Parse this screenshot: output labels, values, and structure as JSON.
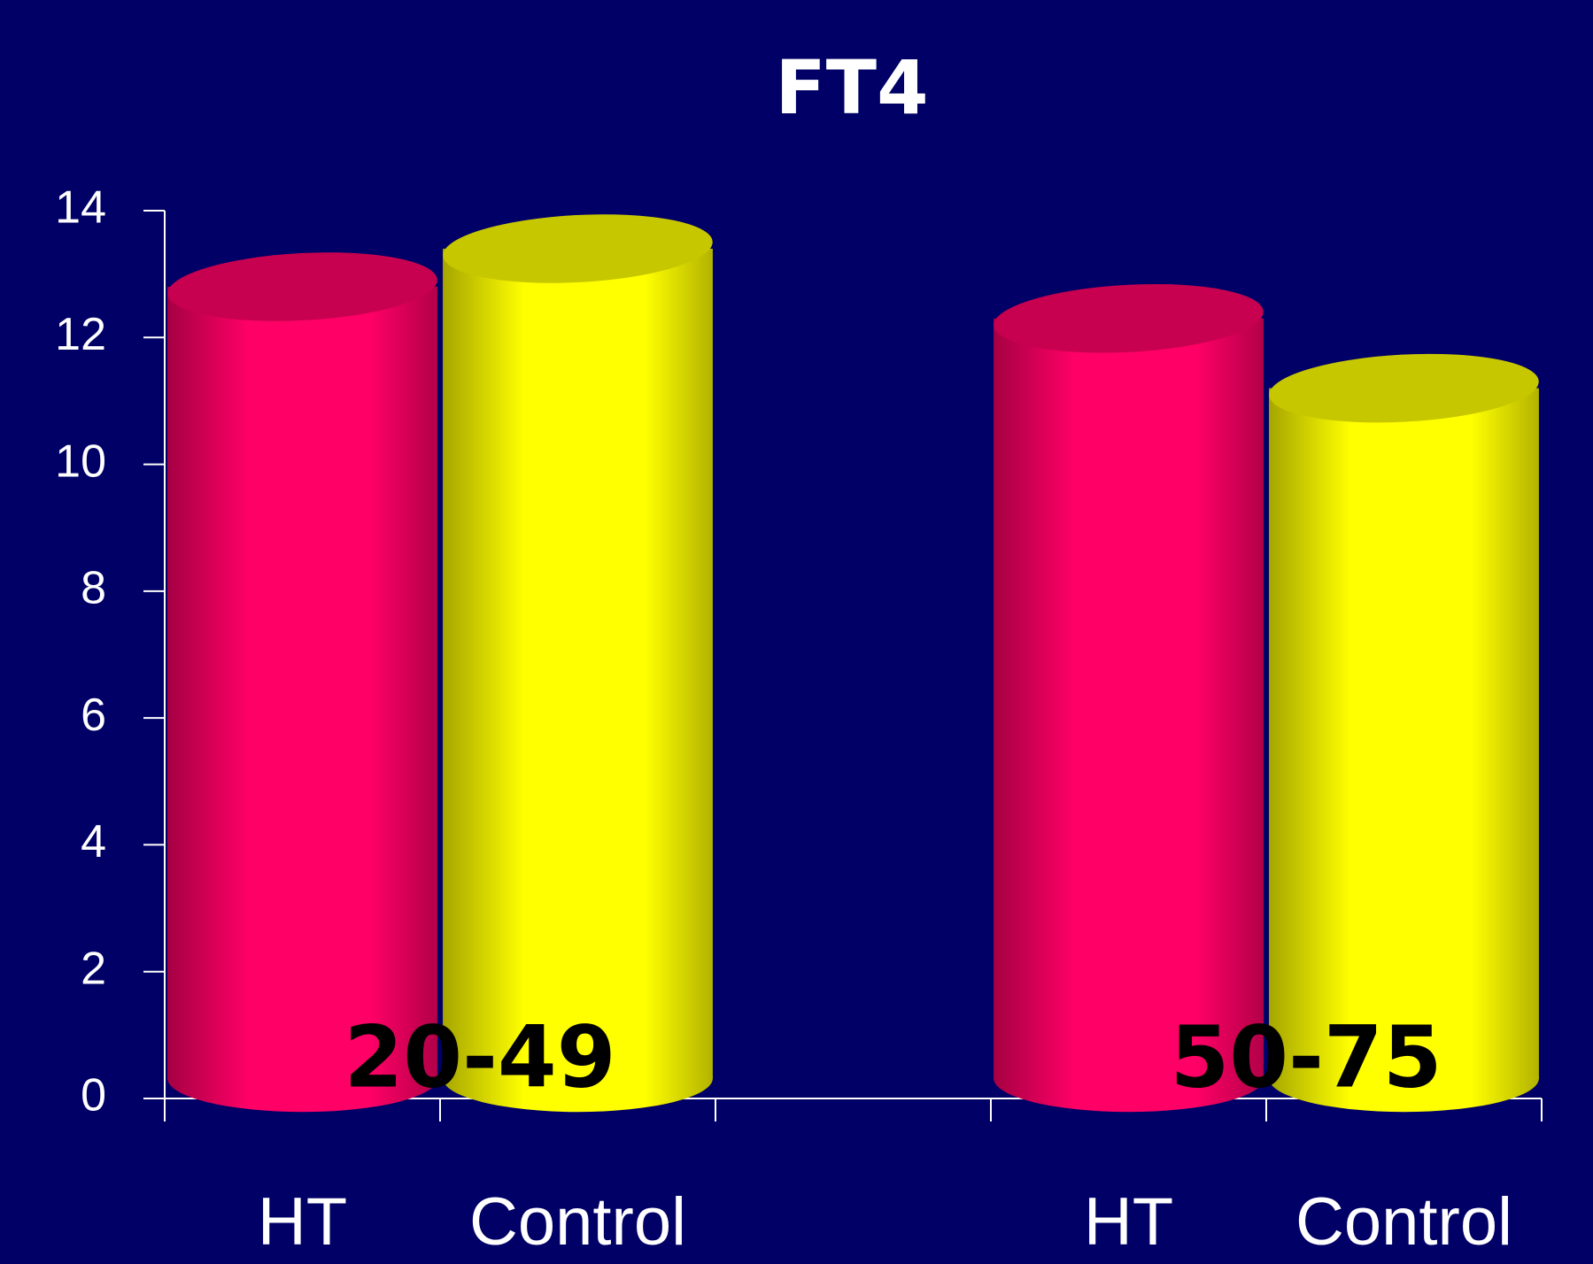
{
  "chart_data": {
    "type": "bar",
    "title": "FT4",
    "categories": [
      "HT",
      "Control",
      "HT",
      "Control"
    ],
    "values": [
      12.8,
      13.4,
      12.3,
      11.2
    ],
    "colors": [
      "#ff0066",
      "#ffff00",
      "#ff0066",
      "#ffff00"
    ],
    "groups": [
      "20-49",
      "50-75"
    ],
    "ylim": [
      0,
      14
    ],
    "yticks": [
      0,
      2,
      4,
      6,
      8,
      10,
      12,
      14
    ]
  }
}
